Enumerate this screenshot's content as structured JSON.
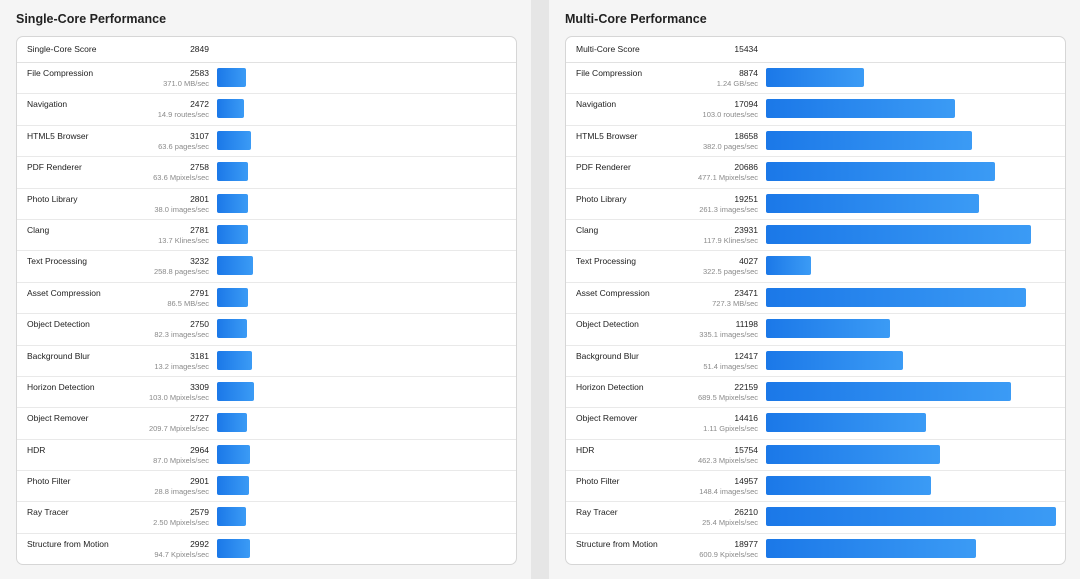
{
  "bar_color": "#2389ee",
  "panels": [
    {
      "id": "single",
      "title": "Single-Core Performance",
      "score_label": "Single-Core Score",
      "score": "2849",
      "scale_max": 26210,
      "tests": [
        {
          "name": "File Compression",
          "score": 2583,
          "rate": "371.0 MB/sec"
        },
        {
          "name": "Navigation",
          "score": 2472,
          "rate": "14.9 routes/sec"
        },
        {
          "name": "HTML5 Browser",
          "score": 3107,
          "rate": "63.6 pages/sec"
        },
        {
          "name": "PDF Renderer",
          "score": 2758,
          "rate": "63.6 Mpixels/sec"
        },
        {
          "name": "Photo Library",
          "score": 2801,
          "rate": "38.0 images/sec"
        },
        {
          "name": "Clang",
          "score": 2781,
          "rate": "13.7 Klines/sec"
        },
        {
          "name": "Text Processing",
          "score": 3232,
          "rate": "258.8 pages/sec"
        },
        {
          "name": "Asset Compression",
          "score": 2791,
          "rate": "86.5 MB/sec"
        },
        {
          "name": "Object Detection",
          "score": 2750,
          "rate": "82.3 images/sec"
        },
        {
          "name": "Background Blur",
          "score": 3181,
          "rate": "13.2 images/sec"
        },
        {
          "name": "Horizon Detection",
          "score": 3309,
          "rate": "103.0 Mpixels/sec"
        },
        {
          "name": "Object Remover",
          "score": 2727,
          "rate": "209.7 Mpixels/sec"
        },
        {
          "name": "HDR",
          "score": 2964,
          "rate": "87.0 Mpixels/sec"
        },
        {
          "name": "Photo Filter",
          "score": 2901,
          "rate": "28.8 images/sec"
        },
        {
          "name": "Ray Tracer",
          "score": 2579,
          "rate": "2.50 Mpixels/sec"
        },
        {
          "name": "Structure from Motion",
          "score": 2992,
          "rate": "94.7 Kpixels/sec"
        }
      ]
    },
    {
      "id": "multi",
      "title": "Multi-Core Performance",
      "score_label": "Multi-Core Score",
      "score": "15434",
      "scale_max": 26210,
      "tests": [
        {
          "name": "File Compression",
          "score": 8874,
          "rate": "1.24 GB/sec"
        },
        {
          "name": "Navigation",
          "score": 17094,
          "rate": "103.0 routes/sec"
        },
        {
          "name": "HTML5 Browser",
          "score": 18658,
          "rate": "382.0 pages/sec"
        },
        {
          "name": "PDF Renderer",
          "score": 20686,
          "rate": "477.1 Mpixels/sec"
        },
        {
          "name": "Photo Library",
          "score": 19251,
          "rate": "261.3 images/sec"
        },
        {
          "name": "Clang",
          "score": 23931,
          "rate": "117.9 Klines/sec"
        },
        {
          "name": "Text Processing",
          "score": 4027,
          "rate": "322.5 pages/sec"
        },
        {
          "name": "Asset Compression",
          "score": 23471,
          "rate": "727.3 MB/sec"
        },
        {
          "name": "Object Detection",
          "score": 11198,
          "rate": "335.1 images/sec"
        },
        {
          "name": "Background Blur",
          "score": 12417,
          "rate": "51.4 images/sec"
        },
        {
          "name": "Horizon Detection",
          "score": 22159,
          "rate": "689.5 Mpixels/sec"
        },
        {
          "name": "Object Remover",
          "score": 14416,
          "rate": "1.11 Gpixels/sec"
        },
        {
          "name": "HDR",
          "score": 15754,
          "rate": "462.3 Mpixels/sec"
        },
        {
          "name": "Photo Filter",
          "score": 14957,
          "rate": "148.4 images/sec"
        },
        {
          "name": "Ray Tracer",
          "score": 26210,
          "rate": "25.4 Mpixels/sec"
        },
        {
          "name": "Structure from Motion",
          "score": 18977,
          "rate": "600.9 Kpixels/sec"
        }
      ]
    }
  ]
}
